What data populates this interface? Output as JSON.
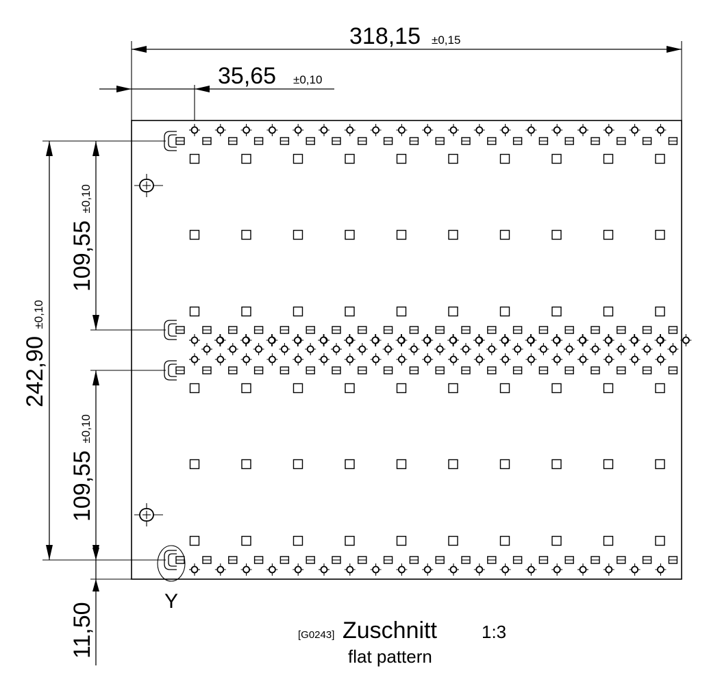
{
  "drawing": {
    "dim_width": {
      "value": "318,15",
      "tol": "±0,15"
    },
    "dim_offset": {
      "value": "35,65",
      "tol": "±0,10"
    },
    "dim_total_height": {
      "value": "242,90",
      "tol": "±0,10"
    },
    "dim_upper_pitch": {
      "value": "109,55",
      "tol": "±0,10"
    },
    "dim_lower_pitch": {
      "value": "109,55",
      "tol": "±0,10"
    },
    "dim_bottom": {
      "value": "11,50"
    },
    "detail_label": "Y",
    "title": {
      "code": "[G0243]",
      "name": "Zuschnitt",
      "scale": "1:3",
      "subtitle": "flat pattern"
    }
  }
}
